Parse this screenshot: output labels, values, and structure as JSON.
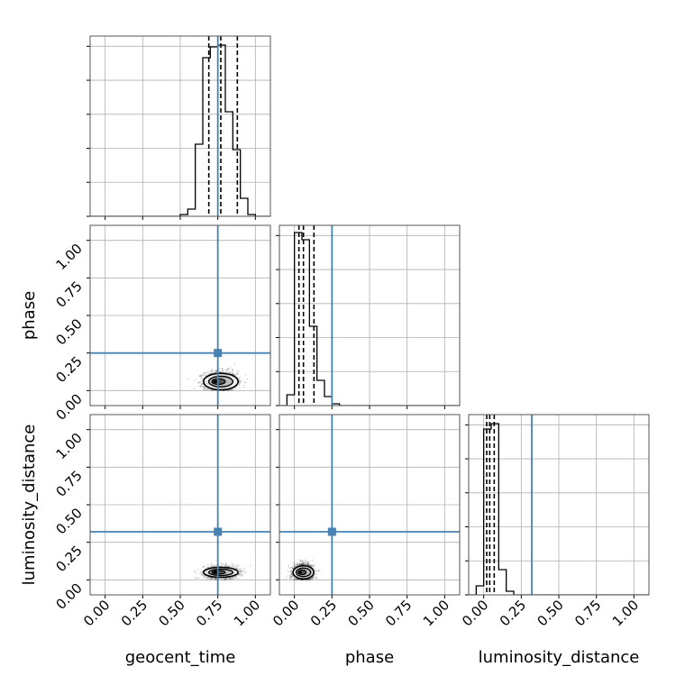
{
  "chart_data": {
    "type": "corner",
    "parameters": [
      "geocent_time",
      "phase",
      "luminosity_distance"
    ],
    "truths": [
      0.75,
      0.25,
      0.32
    ],
    "truth_color": "#4682b4",
    "ticks": [
      0,
      0.25,
      0.5,
      0.75,
      1
    ],
    "tick_labels": [
      "0.00",
      "0.25",
      "0.50",
      "0.75",
      "1.00"
    ],
    "ranges": [
      [
        -0.1,
        1.1
      ],
      [
        -0.1,
        1.1
      ],
      [
        -0.1,
        1.1
      ]
    ],
    "grid": true,
    "marginals": [
      {
        "parameter": "geocent_time",
        "bin_edges": [
          0.5,
          0.55,
          0.6,
          0.65,
          0.7,
          0.75,
          0.8,
          0.85,
          0.9,
          0.95,
          1.0,
          1.05
        ],
        "counts": [
          0.01,
          0.04,
          0.4,
          0.88,
          0.94,
          0.95,
          0.58,
          0.37,
          0.1,
          0.01,
          0
        ],
        "quantiles": [
          0.69,
          0.77,
          0.88
        ]
      },
      {
        "parameter": "phase",
        "bin_edges": [
          -0.05,
          0.0,
          0.05,
          0.1,
          0.15,
          0.2,
          0.25,
          0.3
        ],
        "counts": [
          0.06,
          0.96,
          0.92,
          0.44,
          0.14,
          0.05,
          0.01
        ],
        "quantiles": [
          0.03,
          0.06,
          0.13
        ]
      },
      {
        "parameter": "luminosity_distance",
        "bin_edges": [
          -0.05,
          0.0,
          0.05,
          0.1,
          0.15,
          0.2
        ],
        "counts": [
          0.05,
          0.92,
          0.95,
          0.14,
          0.02
        ],
        "quantiles": [
          0.02,
          0.04,
          0.07
        ]
      }
    ],
    "density_2d": [
      {
        "x": "geocent_time",
        "y": "phase",
        "x_center": 0.77,
        "y_center": 0.06,
        "x_spread": 0.1,
        "y_spread": 0.05
      },
      {
        "x": "geocent_time",
        "y": "luminosity_distance",
        "x_center": 0.77,
        "y_center": 0.05,
        "x_spread": 0.1,
        "y_spread": 0.03
      },
      {
        "x": "phase",
        "y": "luminosity_distance",
        "x_center": 0.06,
        "y_center": 0.05,
        "x_spread": 0.06,
        "y_spread": 0.04
      }
    ]
  }
}
